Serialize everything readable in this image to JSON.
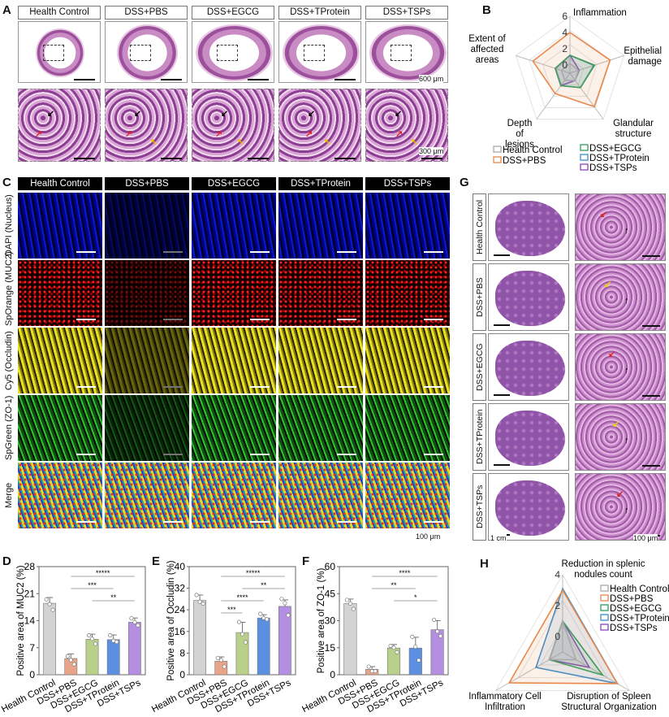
{
  "panels": {
    "A": "A",
    "B": "B",
    "C": "C",
    "D": "D",
    "E": "E",
    "F": "F",
    "G": "G",
    "H": "H"
  },
  "groups": [
    "Health Control",
    "DSS+PBS",
    "DSS+EGCG",
    "DSS+TProtein",
    "DSS+TSPs"
  ],
  "panelA": {
    "scale_top": "600 μm",
    "scale_bottom": "300 μm"
  },
  "panelC": {
    "rows": [
      "DAPI (Nucleus)",
      "SpOrange (MUC2)",
      "Cy5 (Occludin)",
      "SpGreen (ZO-1)",
      "Merge"
    ],
    "scale": "100 μm"
  },
  "panelG": {
    "rows": [
      "Health Control",
      "DSS+PBS",
      "DSS+EGCG",
      "DSS+TProtein",
      "DSS+TSPs"
    ],
    "scale_gross": "1 cm",
    "scale_hist": "100 μm"
  },
  "colors": {
    "Health Control": "#a9a9a9",
    "DSS+PBS": "#e8884a",
    "DSS+EGCG": "#2e9e5e",
    "DSS+TProtein": "#3a8fd0",
    "DSS+TSPs": "#8b45c0",
    "bar_fill": [
      "#d3d3d3",
      "#e8a488",
      "#b8d08a",
      "#5b8fe0",
      "#b48ee0"
    ]
  },
  "chart_data": [
    {
      "id": "B",
      "type": "radar",
      "axes": [
        "Inflammation",
        "Epithelial damage",
        "Glandular structure",
        "Depth of lesions",
        "Extent of affected areas"
      ],
      "ticks": [
        0,
        2,
        4,
        6
      ],
      "rlim": [
        -1,
        6
      ],
      "legend": "bottom",
      "series": [
        {
          "name": "Health Control",
          "values": [
            0.2,
            0.1,
            0.1,
            0.1,
            0.1
          ]
        },
        {
          "name": "DSS+PBS",
          "values": [
            4,
            4.2,
            4.1,
            2.1,
            3.8
          ]
        },
        {
          "name": "DSS+EGCG",
          "values": [
            1.2,
            2.2,
            1.2,
            0.9,
            0.9
          ]
        },
        {
          "name": "DSS+TProtein",
          "values": [
            1.2,
            2.1,
            1.2,
            0.9,
            0.9
          ]
        },
        {
          "name": "DSS+TSPs",
          "values": [
            1.2,
            0.2,
            0.1,
            0.9,
            0.9
          ]
        }
      ]
    },
    {
      "id": "D",
      "type": "bar",
      "ylabel": "Positive area of MUC2 (%)",
      "ylim": [
        0,
        28
      ],
      "yticks": [
        0,
        7,
        14,
        21,
        28
      ],
      "values": [
        18.5,
        4.2,
        9.2,
        9.1,
        13.6
      ],
      "errors": [
        1.5,
        1.2,
        1.3,
        1.2,
        1.1
      ],
      "points": [
        [
          19.5,
          18.3,
          16.8
        ],
        [
          4.8,
          3.8,
          2.7
        ],
        [
          10.2,
          9.3,
          8
        ],
        [
          10.2,
          8.8,
          8.5
        ],
        [
          14.6,
          13.6,
          12.8
        ]
      ],
      "significance": [
        {
          "from": 1,
          "to": 4,
          "label": "*****"
        },
        {
          "from": 1,
          "to": 3,
          "label": "***"
        },
        {
          "from": 2,
          "to": 4,
          "label": "**"
        }
      ]
    },
    {
      "id": "E",
      "type": "bar",
      "ylabel": "Positive area of Occludin (%)",
      "ylim": [
        0,
        40
      ],
      "yticks": [
        0,
        8,
        16,
        24,
        32,
        40
      ],
      "values": [
        27.5,
        5.0,
        15.6,
        21.0,
        25.3
      ],
      "errors": [
        2,
        1.6,
        3.8,
        1.2,
        2.4
      ],
      "points": [
        [
          29.5,
          27,
          26.3
        ],
        [
          6.2,
          5.4,
          3
        ],
        [
          19.5,
          15,
          12
        ],
        [
          22.5,
          21,
          20.5
        ],
        [
          28,
          26.5,
          22
        ]
      ],
      "significance": [
        {
          "from": 1,
          "to": 4,
          "label": "*****"
        },
        {
          "from": 2,
          "to": 4,
          "label": "**"
        },
        {
          "from": 1,
          "to": 3,
          "label": "****"
        },
        {
          "from": 1,
          "to": 2,
          "label": "***"
        }
      ]
    },
    {
      "id": "F",
      "type": "bar",
      "ylabel": "Positive area of ZO-1 (%)",
      "ylim": [
        0,
        60
      ],
      "yticks": [
        0,
        15,
        30,
        45,
        60
      ],
      "values": [
        39.5,
        3.0,
        14.8,
        14.8,
        25.0
      ],
      "errors": [
        2.5,
        1.5,
        2,
        6,
        5
      ],
      "points": [
        [
          41.5,
          39.5,
          36.5
        ],
        [
          4.5,
          2,
          2
        ],
        [
          16,
          15,
          12.5
        ],
        [
          21,
          15.5,
          8
        ],
        [
          30.5,
          24,
          21.5
        ]
      ],
      "significance": [
        {
          "from": 1,
          "to": 4,
          "label": "****"
        },
        {
          "from": 1,
          "to": 3,
          "label": "**"
        },
        {
          "from": 2,
          "to": 4,
          "label": "*"
        }
      ]
    },
    {
      "id": "H",
      "type": "radar",
      "axes": [
        "Reduction in splenic nodules count",
        "Disruption of Spleen Structural Organization",
        "Inflammatory Cell Infiltration"
      ],
      "ticks": [
        0,
        2,
        4
      ],
      "rlim": [
        -1,
        4
      ],
      "legend": "top-right",
      "series": [
        {
          "name": "Health Control",
          "values": [
            1.0,
            0,
            0
          ]
        },
        {
          "name": "DSS+PBS",
          "values": [
            3.0,
            3.1,
            3.0
          ]
        },
        {
          "name": "DSS+EGCG",
          "values": [
            1.0,
            2.0,
            0
          ]
        },
        {
          "name": "DSS+TProtein",
          "values": [
            3.1,
            3.1,
            1.0
          ]
        },
        {
          "name": "DSS+TSPs",
          "values": [
            1.0,
            1.0,
            0
          ]
        }
      ]
    }
  ]
}
